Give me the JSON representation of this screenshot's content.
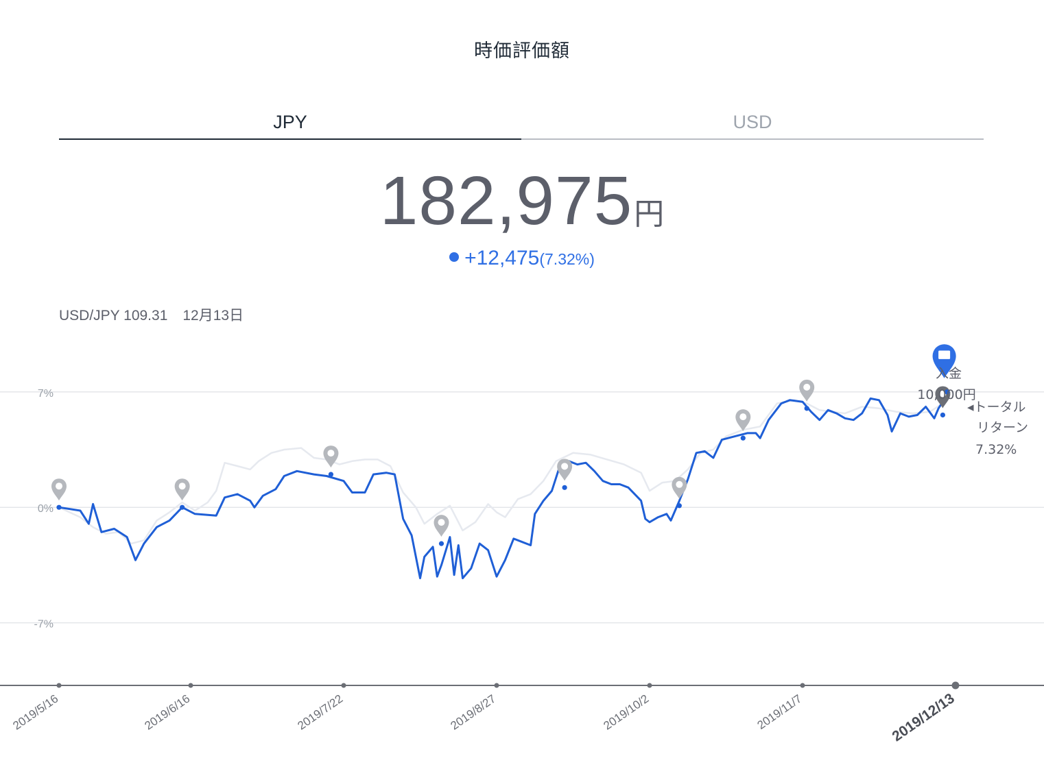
{
  "header": {
    "title": "時価評価額"
  },
  "tabs": [
    {
      "label": "JPY",
      "active": true
    },
    {
      "label": "USD",
      "active": false
    }
  ],
  "summary": {
    "amount": "182,975",
    "unit": "円",
    "change": "+12,475",
    "change_pct": "(7.32%)",
    "accent_color": "#2f6fe4"
  },
  "fx": {
    "label": "USD/JPY 109.31",
    "date": "12月13日"
  },
  "annotations": {
    "deposit_line1": "入金",
    "deposit_line2": "10,000円",
    "total_return_line1": "◂トータル",
    "total_return_line2": "リターン",
    "total_return_value": "7.32%"
  },
  "chart_data": {
    "type": "line",
    "title": "",
    "xlabel": "",
    "ylabel": "",
    "ylim": [
      -10.8,
      10.4
    ],
    "y_ticks": [
      {
        "value": 7,
        "label": "7%"
      },
      {
        "value": 0,
        "label": "0%"
      },
      {
        "value": -7,
        "label": "-7%"
      }
    ],
    "x_ticks": [
      "2019/5/16",
      "2019/6/16",
      "2019/7/22",
      "2019/8/27",
      "2019/10/2",
      "2019/11/7",
      "2019/12/13"
    ],
    "x_tick_selected": "2019/12/13",
    "grid": true,
    "series": [
      {
        "color": "#1f5fd6",
        "points": [
          [
            "2019/5/16",
            0.0
          ],
          [
            "2019/5/21",
            -0.2
          ],
          [
            "2019/5/23",
            -1.0
          ],
          [
            "2019/5/24",
            0.2
          ],
          [
            "2019/5/26",
            -1.5
          ],
          [
            "2019/5/29",
            -1.3
          ],
          [
            "2019/6/1",
            -1.8
          ],
          [
            "2019/6/3",
            -3.2
          ],
          [
            "2019/6/5",
            -2.2
          ],
          [
            "2019/6/8",
            -1.2
          ],
          [
            "2019/6/11",
            -0.8
          ],
          [
            "2019/6/14",
            0.0
          ],
          [
            "2019/6/17",
            -0.4
          ],
          [
            "2019/6/22",
            -0.5
          ],
          [
            "2019/6/24",
            0.6
          ],
          [
            "2019/6/27",
            0.8
          ],
          [
            "2019/6/30",
            0.4
          ],
          [
            "2019/7/1",
            0.0
          ],
          [
            "2019/7/3",
            0.7
          ],
          [
            "2019/7/6",
            1.1
          ],
          [
            "2019/7/8",
            1.9
          ],
          [
            "2019/7/11",
            2.2
          ],
          [
            "2019/7/15",
            2.0
          ],
          [
            "2019/7/18",
            1.9
          ],
          [
            "2019/7/22",
            1.6
          ],
          [
            "2019/7/24",
            0.9
          ],
          [
            "2019/7/27",
            0.9
          ],
          [
            "2019/7/29",
            2.0
          ],
          [
            "2019/8/1",
            2.1
          ],
          [
            "2019/8/3",
            2.0
          ],
          [
            "2019/8/5",
            -0.7
          ],
          [
            "2019/8/7",
            -1.7
          ],
          [
            "2019/8/9",
            -4.3
          ],
          [
            "2019/8/10",
            -3.0
          ],
          [
            "2019/8/12",
            -2.4
          ],
          [
            "2019/8/13",
            -4.2
          ],
          [
            "2019/8/14",
            -3.5
          ],
          [
            "2019/8/16",
            -1.8
          ],
          [
            "2019/8/17",
            -4.1
          ],
          [
            "2019/8/18",
            -2.3
          ],
          [
            "2019/8/19",
            -4.3
          ],
          [
            "2019/8/21",
            -3.7
          ],
          [
            "2019/8/23",
            -2.2
          ],
          [
            "2019/8/25",
            -2.6
          ],
          [
            "2019/8/27",
            -4.2
          ],
          [
            "2019/8/29",
            -3.2
          ],
          [
            "2019/8/31",
            -1.9
          ],
          [
            "2019/9/2",
            -2.1
          ],
          [
            "2019/9/4",
            -2.3
          ],
          [
            "2019/9/5",
            -0.4
          ],
          [
            "2019/9/7",
            0.4
          ],
          [
            "2019/9/9",
            1.0
          ],
          [
            "2019/9/11",
            2.6
          ],
          [
            "2019/9/13",
            2.8
          ],
          [
            "2019/9/15",
            2.6
          ],
          [
            "2019/9/17",
            2.7
          ],
          [
            "2019/9/19",
            2.2
          ],
          [
            "2019/9/21",
            1.6
          ],
          [
            "2019/9/23",
            1.4
          ],
          [
            "2019/9/25",
            1.4
          ],
          [
            "2019/9/27",
            1.2
          ],
          [
            "2019/9/30",
            0.4
          ],
          [
            "2019/10/1",
            -0.7
          ],
          [
            "2019/10/2",
            -0.9
          ],
          [
            "2019/10/4",
            -0.6
          ],
          [
            "2019/10/6",
            -0.4
          ],
          [
            "2019/10/7",
            -0.8
          ],
          [
            "2019/10/9",
            0.4
          ],
          [
            "2019/10/11",
            1.7
          ],
          [
            "2019/10/13",
            3.3
          ],
          [
            "2019/10/15",
            3.4
          ],
          [
            "2019/10/17",
            3.0
          ],
          [
            "2019/10/19",
            4.1
          ],
          [
            "2019/10/22",
            4.3
          ],
          [
            "2019/10/25",
            4.5
          ],
          [
            "2019/10/27",
            4.5
          ],
          [
            "2019/10/28",
            4.2
          ],
          [
            "2019/10/30",
            5.3
          ],
          [
            "2019/11/2",
            6.3
          ],
          [
            "2019/11/4",
            6.5
          ],
          [
            "2019/11/7",
            6.4
          ],
          [
            "2019/11/9",
            5.8
          ],
          [
            "2019/11/11",
            5.3
          ],
          [
            "2019/11/13",
            5.9
          ],
          [
            "2019/11/15",
            5.7
          ],
          [
            "2019/11/17",
            5.4
          ],
          [
            "2019/11/19",
            5.3
          ],
          [
            "2019/11/21",
            5.7
          ],
          [
            "2019/11/23",
            6.6
          ],
          [
            "2019/11/25",
            6.5
          ],
          [
            "2019/11/27",
            5.6
          ],
          [
            "2019/11/28",
            4.6
          ],
          [
            "2019/11/30",
            5.7
          ],
          [
            "2019/12/2",
            5.5
          ],
          [
            "2019/12/4",
            5.6
          ],
          [
            "2019/12/6",
            6.1
          ],
          [
            "2019/12/8",
            5.4
          ],
          [
            "2019/12/9",
            6.0
          ],
          [
            "2019/12/10",
            6.4
          ]
        ]
      },
      {
        "color": "#e6e9ef",
        "points": [
          [
            "2019/5/16",
            0.0
          ],
          [
            "2019/5/21",
            -0.6
          ],
          [
            "2019/5/24",
            -1.2
          ],
          [
            "2019/5/27",
            -1.6
          ],
          [
            "2019/5/30",
            -1.5
          ],
          [
            "2019/6/2",
            -2.2
          ],
          [
            "2019/6/5",
            -2.0
          ],
          [
            "2019/6/8",
            -0.8
          ],
          [
            "2019/6/11",
            -0.3
          ],
          [
            "2019/6/14",
            0.3
          ],
          [
            "2019/6/17",
            -0.2
          ],
          [
            "2019/6/20",
            0.3
          ],
          [
            "2019/6/22",
            1.0
          ],
          [
            "2019/6/24",
            2.7
          ],
          [
            "2019/6/27",
            2.5
          ],
          [
            "2019/6/30",
            2.3
          ],
          [
            "2019/7/2",
            2.8
          ],
          [
            "2019/7/5",
            3.3
          ],
          [
            "2019/7/8",
            3.5
          ],
          [
            "2019/7/12",
            3.6
          ],
          [
            "2019/7/15",
            3.0
          ],
          [
            "2019/7/18",
            2.9
          ],
          [
            "2019/7/21",
            2.6
          ],
          [
            "2019/7/24",
            2.8
          ],
          [
            "2019/7/27",
            2.9
          ],
          [
            "2019/7/30",
            2.9
          ],
          [
            "2019/8/2",
            2.5
          ],
          [
            "2019/8/5",
            0.9
          ],
          [
            "2019/8/8",
            0.0
          ],
          [
            "2019/8/10",
            -1.0
          ],
          [
            "2019/8/13",
            -0.4
          ],
          [
            "2019/8/16",
            0.1
          ],
          [
            "2019/8/19",
            -1.4
          ],
          [
            "2019/8/22",
            -0.9
          ],
          [
            "2019/8/25",
            0.2
          ],
          [
            "2019/8/27",
            -0.3
          ],
          [
            "2019/8/29",
            -0.6
          ],
          [
            "2019/9/1",
            0.5
          ],
          [
            "2019/9/4",
            0.8
          ],
          [
            "2019/9/7",
            1.6
          ],
          [
            "2019/9/10",
            2.8
          ],
          [
            "2019/9/14",
            3.3
          ],
          [
            "2019/9/18",
            3.2
          ],
          [
            "2019/9/22",
            2.9
          ],
          [
            "2019/9/26",
            2.6
          ],
          [
            "2019/9/30",
            2.1
          ],
          [
            "2019/10/2",
            1.0
          ],
          [
            "2019/10/5",
            1.5
          ],
          [
            "2019/10/8",
            1.6
          ],
          [
            "2019/10/11",
            2.3
          ],
          [
            "2019/10/14",
            3.3
          ],
          [
            "2019/10/17",
            3.5
          ],
          [
            "2019/10/20",
            4.3
          ],
          [
            "2019/10/24",
            4.7
          ],
          [
            "2019/10/28",
            4.9
          ],
          [
            "2019/11/1",
            6.3
          ],
          [
            "2019/11/5",
            6.5
          ],
          [
            "2019/11/8",
            6.3
          ],
          [
            "2019/11/11",
            5.9
          ],
          [
            "2019/11/14",
            5.8
          ],
          [
            "2019/11/17",
            5.7
          ],
          [
            "2019/11/21",
            6.1
          ],
          [
            "2019/11/25",
            6.0
          ],
          [
            "2019/11/29",
            5.8
          ],
          [
            "2019/12/3",
            5.7
          ],
          [
            "2019/12/7",
            5.8
          ],
          [
            "2019/12/10",
            6.3
          ]
        ]
      }
    ],
    "markers": [
      {
        "date": "2019/5/16",
        "value": 0.0,
        "type": "pin",
        "color": "#b5b8bd"
      },
      {
        "date": "2019/6/14",
        "value": 0.0,
        "type": "pin",
        "color": "#b5b8bd"
      },
      {
        "date": "2019/7/19",
        "value": 2.0,
        "type": "pin",
        "color": "#b5b8bd"
      },
      {
        "date": "2019/8/14",
        "value": -2.2,
        "type": "pin",
        "color": "#b5b8bd"
      },
      {
        "date": "2019/9/12",
        "value": 1.2,
        "type": "pin",
        "color": "#b5b8bd"
      },
      {
        "date": "2019/10/9",
        "value": 0.1,
        "type": "pin",
        "color": "#b5b8bd"
      },
      {
        "date": "2019/10/24",
        "value": 4.2,
        "type": "pin",
        "color": "#b5b8bd"
      },
      {
        "date": "2019/11/8",
        "value": 6.0,
        "type": "pin",
        "color": "#b5b8bd"
      },
      {
        "date": "2019/12/10",
        "value": 5.6,
        "type": "pin",
        "color": "#6b6e75"
      },
      {
        "date": "2019/12/11",
        "value": 7.0,
        "type": "deposit",
        "color": "#2f6fe4"
      }
    ]
  }
}
